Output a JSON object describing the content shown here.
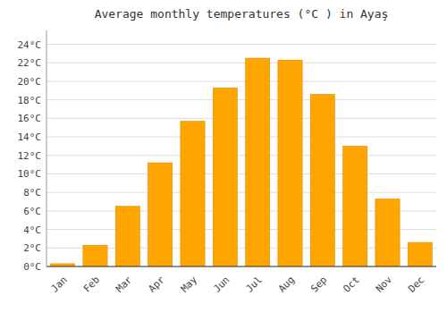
{
  "chart_data": {
    "type": "bar",
    "title": "Average monthly temperatures (°C ) in Ayaş",
    "categories": [
      "Jan",
      "Feb",
      "Mar",
      "Apr",
      "May",
      "Jun",
      "Jul",
      "Aug",
      "Sep",
      "Oct",
      "Nov",
      "Dec"
    ],
    "values": [
      0.3,
      2.3,
      6.5,
      11.2,
      15.7,
      19.3,
      22.5,
      22.3,
      18.6,
      13.0,
      7.3,
      2.6
    ],
    "color": "#FFA500",
    "ylim": [
      0,
      25.5
    ],
    "yticks": [
      {
        "value": 0,
        "label": "0°C"
      },
      {
        "value": 2,
        "label": "2°C"
      },
      {
        "value": 4,
        "label": "4°C"
      },
      {
        "value": 6,
        "label": "6°C"
      },
      {
        "value": 8,
        "label": "8°C"
      },
      {
        "value": 10,
        "label": "10°C"
      },
      {
        "value": 12,
        "label": "12°C"
      },
      {
        "value": 14,
        "label": "14°C"
      },
      {
        "value": 16,
        "label": "16°C"
      },
      {
        "value": 18,
        "label": "18°C"
      },
      {
        "value": 20,
        "label": "20°C"
      },
      {
        "value": 22,
        "label": "22°C"
      },
      {
        "value": 24,
        "label": "24°C"
      }
    ],
    "grid": true
  }
}
